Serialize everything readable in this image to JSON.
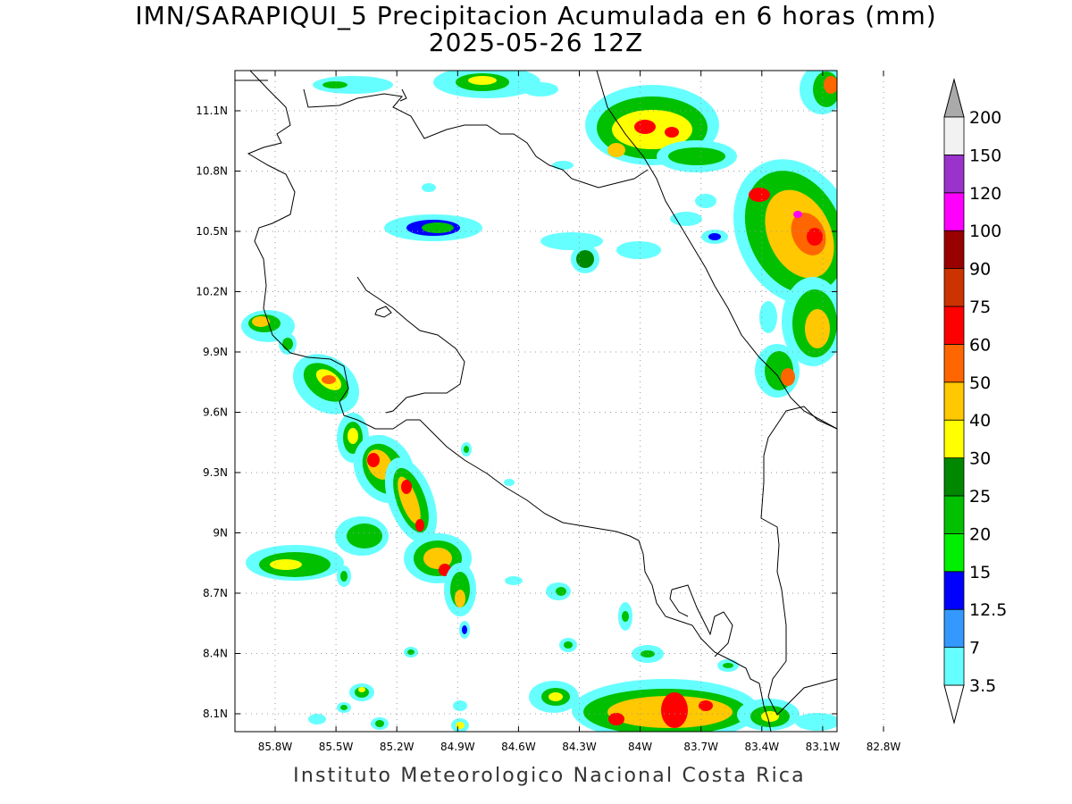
{
  "title_line1": "IMN/SARAPIQUI_5 Precipitacion Acumulada en 6 horas (mm)",
  "title_line2": "2025-05-26 12Z",
  "footer": "Instituto Meteorologico Nacional Costa Rica",
  "map": {
    "lon_range": [
      -86.05,
      -83.08
    ],
    "lat_range": [
      8.0,
      11.3
    ],
    "lon_ticks": [
      "85.8W",
      "85.5W",
      "85.2W",
      "84.9W",
      "84.6W",
      "84.3W",
      "84W",
      "83.7W",
      "83.4W",
      "83.1W",
      "82.8W"
    ],
    "lat_ticks": [
      "11.1N",
      "10.8N",
      "10.5N",
      "10.2N",
      "9.9N",
      "9.6N",
      "9.3N",
      "9N",
      "8.7N",
      "8.4N",
      "8.1N"
    ],
    "grid": true
  },
  "colorbar": {
    "levels": [
      "3.5",
      "7",
      "12.5",
      "15",
      "20",
      "25",
      "30",
      "40",
      "50",
      "60",
      "75",
      "90",
      "100",
      "120",
      "150",
      "200"
    ],
    "colors": [
      "#66ffff",
      "#3399ff",
      "#0000ff",
      "#00ee00",
      "#00c000",
      "#008800",
      "#ffff00",
      "#ffc800",
      "#ff6600",
      "#ff0000",
      "#cc3300",
      "#990000",
      "#ff00ff",
      "#9933cc",
      "#f2f2f2",
      "#aaaaaa"
    ]
  }
}
